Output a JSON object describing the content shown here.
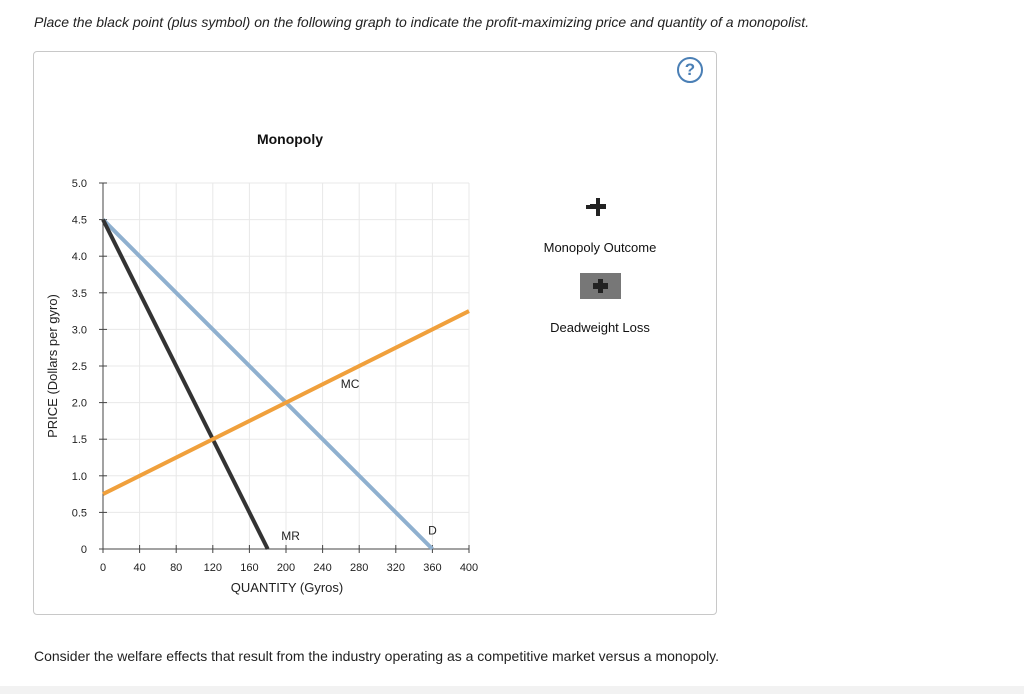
{
  "instruction": "Place the black point (plus symbol) on the following graph to indicate the profit-maximizing price and quantity of a monopolist.",
  "help_label": "?",
  "chart_data": {
    "type": "line",
    "title": "Monopoly",
    "xlabel": "QUANTITY (Gyros)",
    "ylabel": "PRICE (Dollars per gyro)",
    "xlim": [
      0,
      400
    ],
    "ylim": [
      0,
      5.0
    ],
    "x_ticks": [
      "0",
      "40",
      "80",
      "120",
      "160",
      "200",
      "240",
      "280",
      "320",
      "360",
      "400"
    ],
    "y_ticks": [
      "0",
      "0.5",
      "1.0",
      "1.5",
      "2.0",
      "2.5",
      "3.0",
      "3.5",
      "4.0",
      "4.5",
      "5.0"
    ],
    "grid": true,
    "series": [
      {
        "name": "D",
        "color": "#8fb0cf",
        "points": [
          [
            0,
            4.5
          ],
          [
            360,
            0
          ]
        ]
      },
      {
        "name": "MR",
        "color": "#333333",
        "points": [
          [
            0,
            4.5
          ],
          [
            180,
            0
          ]
        ]
      },
      {
        "name": "MC",
        "color": "#f0a03c",
        "points": [
          [
            0,
            0.75
          ],
          [
            400,
            3.25
          ]
        ]
      }
    ],
    "annotations": [
      {
        "text": "MC",
        "x": 270,
        "y": 2.2
      },
      {
        "text": "MR",
        "x": 205,
        "y": 0.12
      },
      {
        "text": "D",
        "x": 360,
        "y": 0.2
      }
    ]
  },
  "tools": {
    "monopoly_outcome_label": "Monopoly Outcome",
    "deadweight_loss_label": "Deadweight Loss"
  },
  "bottom_text": "Consider the welfare effects that result from the industry operating as a competitive market versus a monopoly."
}
